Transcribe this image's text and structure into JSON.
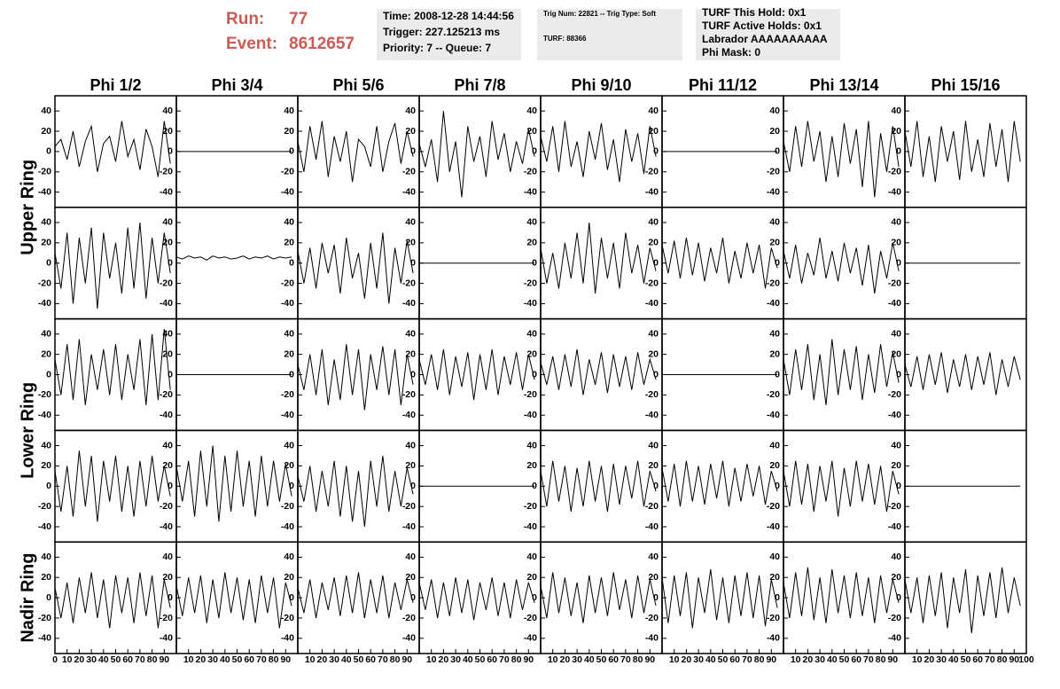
{
  "header": {
    "run_label": "Run:",
    "run": "77",
    "event_label": "Event:",
    "event": "8612657",
    "time_box": [
      "Time: 2008-12-28 14:44:56",
      "Trigger: 227.125213 ms",
      "Priority: 7 -- Queue: 7"
    ],
    "trig_box": [
      "Trig Num: 22821 -- Trig Type: Soft",
      "TURF: 88366"
    ],
    "turf_box": [
      "TURF This Hold: 0x1",
      "TURF Active Holds: 0x1",
      "Labrador AAAAAAAAAA",
      "Phi Mask: 0"
    ]
  },
  "chart_data": {
    "type": "line",
    "column_titles": [
      "Phi 1/2",
      "Phi 3/4",
      "Phi 5/6",
      "Phi 7/8",
      "Phi 9/10",
      "Phi 11/12",
      "Phi 13/14",
      "Phi 15/16"
    ],
    "row_titles": [
      "Upper Ring",
      "Lower Ring",
      "Nadir Ring"
    ],
    "color": "#000000",
    "x": [
      0,
      5,
      10,
      15,
      20,
      25,
      30,
      35,
      40,
      45,
      50,
      55,
      60,
      65,
      70,
      75,
      80,
      85,
      90,
      95
    ],
    "xlim": [
      0,
      100
    ],
    "xticks": [
      0,
      10,
      20,
      30,
      40,
      50,
      60,
      70,
      80,
      90,
      100
    ],
    "ylim": [
      -55,
      55
    ],
    "yticks": [
      -40,
      -20,
      0,
      20,
      40
    ],
    "panels": [
      [
        [
          5,
          12,
          -8,
          20,
          -15,
          10,
          25,
          -20,
          8,
          15,
          -10,
          30,
          -5,
          12,
          -18,
          22,
          5,
          -25,
          30,
          -12
        ],
        [
          0,
          0,
          0,
          0,
          0,
          0,
          0,
          0,
          0,
          0,
          0,
          0,
          0,
          0,
          0,
          0,
          0,
          0,
          0,
          0
        ],
        [
          10,
          -20,
          25,
          -8,
          30,
          -25,
          15,
          -10,
          20,
          -30,
          12,
          5,
          -15,
          25,
          -20,
          10,
          28,
          -12,
          20,
          -5
        ],
        [
          8,
          -15,
          12,
          -30,
          40,
          -20,
          10,
          -45,
          25,
          -10,
          15,
          -25,
          30,
          -8,
          18,
          -20,
          10,
          -12,
          22,
          -5
        ],
        [
          15,
          -10,
          25,
          -20,
          30,
          -15,
          10,
          -25,
          20,
          -8,
          28,
          -18,
          12,
          -30,
          22,
          -10,
          18,
          -22,
          25,
          -5
        ],
        [
          0,
          0,
          0,
          0,
          0,
          0,
          0,
          0,
          0,
          0,
          0,
          0,
          0,
          0,
          0,
          0,
          0,
          0,
          0,
          0
        ],
        [
          10,
          -20,
          25,
          -15,
          30,
          -10,
          20,
          -30,
          15,
          -25,
          28,
          -12,
          22,
          -35,
          30,
          -45,
          18,
          -20,
          25,
          -15
        ],
        [
          20,
          -15,
          30,
          -25,
          15,
          -30,
          25,
          -10,
          20,
          -28,
          30,
          -20,
          12,
          -25,
          28,
          -15,
          22,
          -30,
          30,
          -10
        ]
      ],
      [
        [
          10,
          -25,
          30,
          -40,
          25,
          -20,
          35,
          -45,
          30,
          -15,
          20,
          -30,
          35,
          -25,
          40,
          -35,
          25,
          -20,
          30,
          -10
        ],
        [
          6,
          4,
          7,
          5,
          6,
          3,
          7,
          5,
          6,
          4,
          5,
          7,
          4,
          6,
          5,
          7,
          4,
          6,
          5,
          6
        ],
        [
          12,
          -20,
          15,
          -25,
          20,
          -10,
          18,
          -30,
          25,
          -15,
          10,
          -35,
          20,
          -25,
          30,
          -40,
          15,
          -20,
          22,
          -10
        ],
        [
          0,
          0,
          0,
          0,
          0,
          0,
          0,
          0,
          0,
          0,
          0,
          0,
          0,
          0,
          0,
          0,
          0,
          0,
          0,
          0
        ],
        [
          15,
          -20,
          10,
          -25,
          20,
          -15,
          30,
          -20,
          40,
          -30,
          25,
          -15,
          20,
          -25,
          30,
          -10,
          18,
          -20,
          15,
          -8
        ],
        [
          18,
          -10,
          22,
          -15,
          25,
          -12,
          20,
          -18,
          15,
          -10,
          25,
          -20,
          12,
          -15,
          20,
          -10,
          18,
          -25,
          15,
          -5
        ],
        [
          12,
          -15,
          18,
          -20,
          10,
          -12,
          25,
          -15,
          12,
          -18,
          20,
          -10,
          15,
          -22,
          18,
          -30,
          12,
          -15,
          20,
          -8
        ],
        [
          0,
          0,
          0,
          0,
          0,
          0,
          0,
          0,
          0,
          0,
          0,
          0,
          0,
          0,
          0,
          0,
          0,
          0,
          0,
          0
        ]
      ],
      [
        [
          15,
          -20,
          30,
          -25,
          35,
          -30,
          20,
          -15,
          25,
          -20,
          30,
          -25,
          20,
          -15,
          35,
          -30,
          40,
          -25,
          45,
          -15
        ],
        [
          0,
          0,
          0,
          0,
          0,
          0,
          0,
          0,
          0,
          0,
          0,
          0,
          0,
          0,
          0,
          0,
          0,
          0,
          0,
          0
        ],
        [
          10,
          -15,
          20,
          -20,
          25,
          -30,
          15,
          -25,
          30,
          -20,
          25,
          -35,
          20,
          -15,
          28,
          -20,
          25,
          -30,
          20,
          -10
        ],
        [
          15,
          -10,
          20,
          -15,
          25,
          -20,
          18,
          -12,
          22,
          -25,
          20,
          -15,
          25,
          -20,
          18,
          -10,
          22,
          -15,
          20,
          -5
        ],
        [
          12,
          -10,
          18,
          -15,
          20,
          -12,
          25,
          -20,
          15,
          -10,
          22,
          -18,
          20,
          -12,
          18,
          -15,
          22,
          -10,
          15,
          -5
        ],
        [
          0,
          0,
          0,
          0,
          0,
          0,
          0,
          0,
          0,
          0,
          0,
          0,
          0,
          0,
          0,
          0,
          0,
          0,
          0,
          0
        ],
        [
          15,
          -20,
          25,
          -15,
          30,
          -25,
          20,
          -30,
          35,
          -20,
          25,
          -15,
          28,
          -25,
          20,
          -18,
          30,
          -12,
          22,
          -8
        ],
        [
          10,
          -12,
          18,
          -15,
          20,
          -10,
          22,
          -18,
          15,
          -12,
          20,
          -15,
          18,
          -10,
          22,
          -20,
          15,
          -12,
          18,
          -5
        ]
      ],
      [
        [
          15,
          -25,
          20,
          -30,
          35,
          -20,
          30,
          -35,
          25,
          -15,
          30,
          -25,
          20,
          -30,
          25,
          -20,
          30,
          -15,
          20,
          -10
        ],
        [
          20,
          -15,
          25,
          -30,
          35,
          -20,
          40,
          -35,
          30,
          -25,
          35,
          -20,
          25,
          -30,
          30,
          -20,
          25,
          -15,
          22,
          -10
        ],
        [
          10,
          -15,
          20,
          -25,
          15,
          -20,
          25,
          -30,
          20,
          -35,
          15,
          -40,
          25,
          -20,
          30,
          -25,
          15,
          -20,
          18,
          -8
        ],
        [
          0,
          0,
          0,
          0,
          0,
          0,
          0,
          0,
          0,
          0,
          0,
          0,
          0,
          0,
          0,
          0,
          0,
          0,
          0,
          0
        ],
        [
          15,
          -20,
          25,
          -15,
          20,
          -25,
          18,
          -20,
          25,
          -15,
          20,
          -25,
          22,
          -18,
          20,
          -12,
          25,
          -20,
          15,
          -5
        ],
        [
          18,
          -15,
          22,
          -20,
          25,
          -15,
          20,
          -18,
          22,
          -12,
          25,
          -20,
          18,
          -15,
          22,
          -10,
          20,
          -18,
          15,
          -5
        ],
        [
          15,
          -20,
          25,
          -18,
          22,
          -25,
          20,
          -15,
          25,
          -30,
          18,
          -20,
          25,
          -15,
          22,
          -18,
          20,
          -25,
          15,
          -8
        ],
        [
          0,
          0,
          0,
          0,
          0,
          0,
          0,
          0,
          0,
          0,
          0,
          0,
          0,
          0,
          0,
          0,
          0,
          0,
          0,
          0
        ]
      ],
      [
        [
          10,
          -20,
          15,
          -25,
          20,
          -15,
          25,
          -20,
          18,
          -30,
          22,
          -15,
          20,
          -25,
          25,
          -18,
          22,
          -30,
          18,
          -10
        ],
        [
          12,
          -18,
          20,
          -15,
          22,
          -25,
          18,
          -20,
          25,
          -15,
          20,
          -22,
          18,
          -25,
          22,
          -15,
          20,
          -30,
          15,
          -8
        ],
        [
          10,
          -15,
          18,
          -20,
          15,
          -12,
          20,
          -18,
          22,
          -15,
          25,
          -20,
          18,
          -15,
          22,
          -20,
          15,
          -12,
          18,
          -5
        ],
        [
          15,
          -12,
          18,
          -20,
          15,
          -18,
          20,
          -15,
          18,
          -22,
          15,
          -12,
          20,
          -18,
          15,
          -20,
          18,
          -12,
          15,
          -5
        ],
        [
          12,
          -20,
          25,
          -15,
          20,
          -18,
          15,
          -25,
          22,
          -15,
          20,
          -18,
          25,
          -12,
          18,
          -20,
          22,
          -15,
          18,
          -8
        ],
        [
          20,
          -25,
          22,
          -18,
          25,
          -30,
          20,
          -15,
          28,
          -22,
          20,
          -25,
          22,
          -18,
          25,
          -20,
          22,
          -28,
          18,
          -10
        ],
        [
          15,
          -20,
          25,
          -18,
          30,
          -22,
          20,
          -25,
          28,
          -15,
          22,
          -20,
          25,
          -18,
          20,
          -25,
          22,
          -15,
          18,
          -5
        ],
        [
          18,
          -15,
          20,
          -25,
          22,
          -18,
          25,
          -30,
          20,
          -15,
          28,
          -35,
          22,
          -18,
          25,
          -20,
          30,
          -15,
          20,
          -8
        ]
      ]
    ]
  }
}
